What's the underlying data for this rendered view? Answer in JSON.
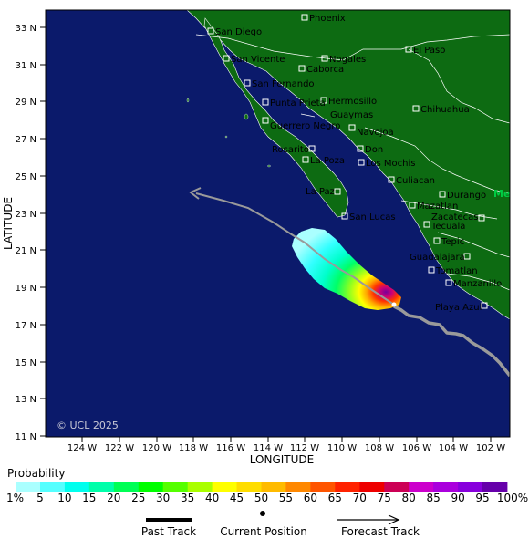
{
  "map": {
    "copyright": "© UCL 2025",
    "x_axis_title": "LONGITUDE",
    "y_axis_title": "LATITUDE",
    "edge_label": "Me",
    "colors": {
      "ocean": "#0b1a6b",
      "land": "#0d6b12",
      "border": "#ffffff",
      "track": "#9a9a9a",
      "forecast": "#9a9a9a"
    },
    "lat_ticks": [
      "33 N",
      "31 N",
      "29 N",
      "27 N",
      "25 N",
      "23 N",
      "21 N",
      "19 N",
      "17 N",
      "15 N",
      "13 N",
      "11 N"
    ],
    "lon_ticks": [
      "124 W",
      "122 W",
      "120 W",
      "118 W",
      "116 W",
      "114 W",
      "112 W",
      "110 W",
      "108 W",
      "106 W",
      "104 W",
      "102 W"
    ],
    "places": [
      {
        "name": "Phoenix"
      },
      {
        "name": "San Diego"
      },
      {
        "name": "El Paso"
      },
      {
        "name": "Nogales"
      },
      {
        "name": "San Vicente"
      },
      {
        "name": "Caborca"
      },
      {
        "name": "San Fernando"
      },
      {
        "name": "Hermosillo"
      },
      {
        "name": "Punta Prieta"
      },
      {
        "name": "Chihuahua"
      },
      {
        "name": "Guaymas"
      },
      {
        "name": "Guerrero Negro"
      },
      {
        "name": "Navojoa"
      },
      {
        "name": "Rosarito"
      },
      {
        "name": "Don"
      },
      {
        "name": "La Poza"
      },
      {
        "name": "Los Mochis"
      },
      {
        "name": "Culiacan"
      },
      {
        "name": "La Paz"
      },
      {
        "name": "Durango"
      },
      {
        "name": "San Lucas"
      },
      {
        "name": "Mazatlan"
      },
      {
        "name": "Zacatecas"
      },
      {
        "name": "Tecuala"
      },
      {
        "name": "Tepic"
      },
      {
        "name": "Guadalajara"
      },
      {
        "name": "Tomatlan"
      },
      {
        "name": "Manzanillo"
      },
      {
        "name": "Playa Azul"
      }
    ]
  },
  "legend": {
    "title": "Probability",
    "labels": [
      "1%",
      "5",
      "10",
      "15",
      "20",
      "25",
      "30",
      "35",
      "40",
      "45",
      "50",
      "55",
      "60",
      "65",
      "70",
      "75",
      "80",
      "85",
      "90",
      "95",
      "100%"
    ],
    "colors": [
      "#aaffff",
      "#55ffff",
      "#00ffee",
      "#00ffaa",
      "#00ff55",
      "#00ff00",
      "#55ff00",
      "#aaff00",
      "#ffff00",
      "#ffdd00",
      "#ffbb00",
      "#ff8800",
      "#ff5500",
      "#ff2200",
      "#ee0000",
      "#cc0055",
      "#cc00cc",
      "#aa00dd",
      "#8800dd",
      "#6600aa",
      "#550055"
    ],
    "past_track_label": "Past Track",
    "current_position_label": "Current Position",
    "forecast_track_label": "Forecast Track"
  }
}
